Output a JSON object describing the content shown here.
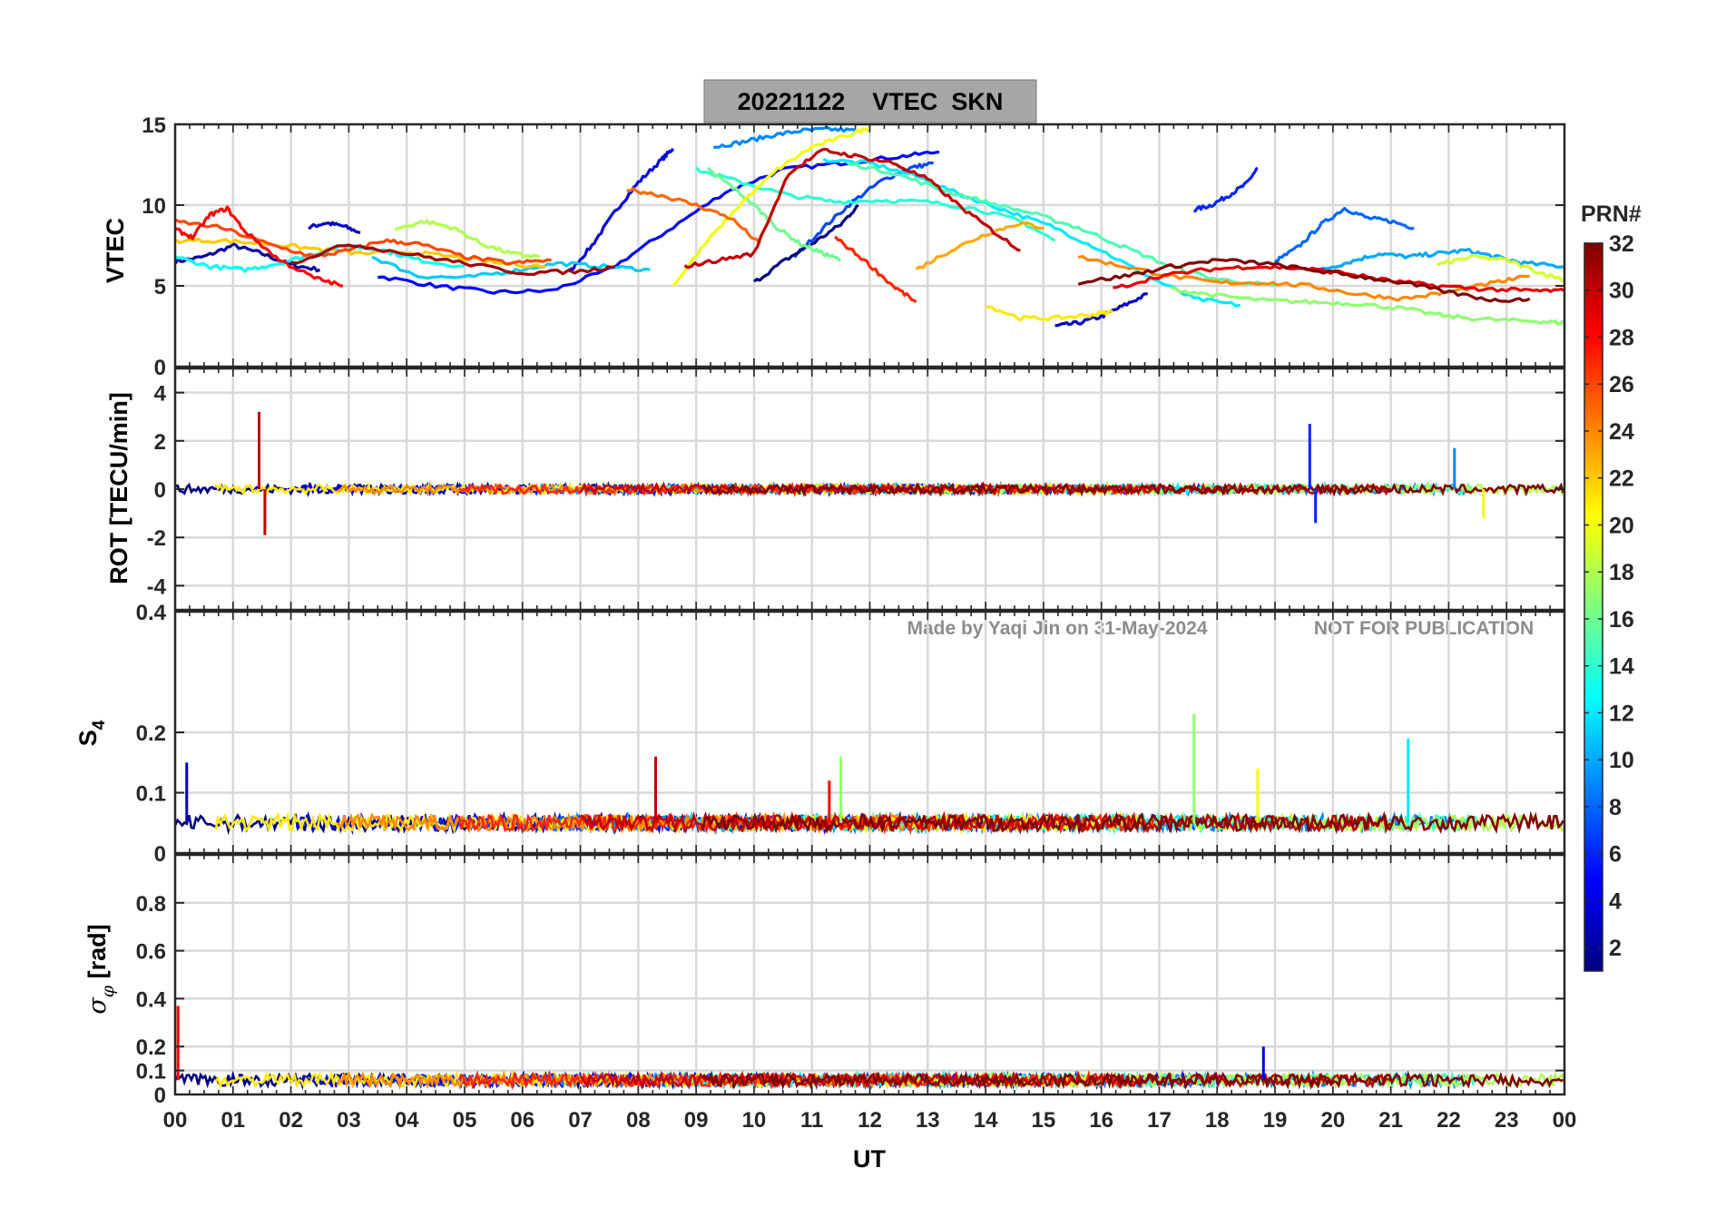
{
  "chart_data": {
    "type": "line",
    "title": "20221122    VTEC  SKN",
    "watermark": {
      "credit": "Made by Yaqi Jin on 31-May-2024",
      "notice": "NOT FOR PUBLICATION"
    },
    "xlabel": "UT",
    "xlim": [
      0,
      24
    ],
    "x_ticks": [
      0,
      1,
      2,
      3,
      4,
      5,
      6,
      7,
      8,
      9,
      10,
      11,
      12,
      13,
      14,
      15,
      16,
      17,
      18,
      19,
      20,
      21,
      22,
      23,
      24
    ],
    "x_tick_labels": [
      "00",
      "01",
      "02",
      "03",
      "04",
      "05",
      "06",
      "07",
      "08",
      "09",
      "10",
      "11",
      "12",
      "13",
      "14",
      "15",
      "16",
      "17",
      "18",
      "19",
      "20",
      "21",
      "22",
      "23",
      "00"
    ],
    "colorbar": {
      "label": "PRN#",
      "range": [
        1,
        32
      ],
      "ticks": [
        2,
        4,
        6,
        8,
        10,
        12,
        14,
        16,
        18,
        20,
        22,
        24,
        26,
        28,
        30,
        32
      ],
      "tick_labels": [
        "2",
        "4",
        "6",
        "8",
        "10",
        "12",
        "14",
        "16",
        "18",
        "20",
        "22",
        "24",
        "26",
        "28",
        "30",
        "32"
      ],
      "colormap": "jet"
    },
    "panels": [
      {
        "name": "vtec",
        "ylabel": "VTEC",
        "ylim": [
          0,
          15
        ],
        "y_ticks": [
          0,
          5,
          10,
          15
        ],
        "y_tick_labels": [
          "0",
          "5",
          "10",
          "15"
        ],
        "series": [
          {
            "prn": 2,
            "t": [
              0.0,
              0.5,
              1.0,
              1.5,
              2.0,
              2.5
            ],
            "v": [
              6.5,
              6.8,
              7.5,
              7.0,
              6.3,
              6.0
            ]
          },
          {
            "prn": 3,
            "t": [
              2.3,
              2.6,
              2.9,
              3.2
            ],
            "v": [
              8.6,
              8.9,
              8.7,
              8.3
            ]
          },
          {
            "prn": 4,
            "t": [
              6.8,
              7.2,
              7.6,
              8.0,
              8.4,
              8.6
            ],
            "v": [
              5.8,
              7.5,
              9.6,
              11.4,
              12.8,
              13.5
            ]
          },
          {
            "prn": 5,
            "t": [
              3.5,
              4.5,
              5.5,
              6.5,
              7.5,
              8.5,
              9.5,
              10.5,
              11.5,
              12.5,
              13.2
            ],
            "v": [
              5.6,
              5.0,
              4.6,
              4.7,
              6.0,
              8.4,
              10.8,
              12.2,
              12.6,
              13.0,
              13.3
            ]
          },
          {
            "prn": 6,
            "t": [
              17.6,
              17.9,
              18.2,
              18.5,
              18.7
            ],
            "v": [
              9.7,
              10.0,
              10.6,
              11.3,
              12.3
            ]
          },
          {
            "prn": 3,
            "t": [
              15.2,
              15.6,
              16.0,
              16.4,
              16.8
            ],
            "v": [
              2.5,
              2.7,
              3.1,
              3.8,
              4.5
            ]
          },
          {
            "prn": 7,
            "t": [
              10.7,
              11.2,
              11.7,
              12.2,
              12.7,
              13.1
            ],
            "v": [
              6.8,
              8.6,
              10.2,
              11.5,
              12.3,
              12.6
            ]
          },
          {
            "prn": 8,
            "t": [
              19.0,
              19.4,
              19.8,
              20.2,
              20.6,
              21.0,
              21.4
            ],
            "v": [
              6.5,
              7.4,
              8.8,
              9.8,
              9.2,
              9.0,
              8.6
            ]
          },
          {
            "prn": 9,
            "t": [
              9.3,
              9.8,
              10.3,
              10.8,
              11.3,
              11.8
            ],
            "v": [
              13.6,
              13.9,
              14.3,
              14.6,
              14.7,
              14.6
            ]
          },
          {
            "prn": 1,
            "t": [
              10.0,
              10.5,
              11.0,
              11.5,
              11.8
            ],
            "v": [
              5.2,
              6.5,
              7.6,
              8.8,
              10.0
            ]
          },
          {
            "prn": 10,
            "t": [
              19.8,
              20.3,
              20.8,
              21.3,
              21.8,
              22.3,
              22.8,
              23.3,
              24.0
            ],
            "v": [
              6.0,
              6.5,
              7.0,
              6.8,
              7.0,
              7.2,
              6.8,
              6.4,
              6.2
            ]
          },
          {
            "prn": 11,
            "t": [
              3.4,
              4.2,
              5.0,
              5.8,
              6.6,
              7.4,
              8.2
            ],
            "v": [
              6.8,
              5.6,
              5.5,
              5.9,
              6.4,
              6.2,
              6.0
            ]
          },
          {
            "prn": 12,
            "t": [
              11.2,
              12.0,
              12.8,
              13.6,
              14.4,
              15.2,
              16.0,
              16.8,
              17.6,
              18.4
            ],
            "v": [
              12.8,
              12.6,
              11.8,
              10.6,
              9.6,
              8.6,
              7.2,
              5.6,
              4.2,
              3.8
            ]
          },
          {
            "prn": 13,
            "t": [
              0.0,
              0.6,
              1.2,
              1.8,
              2.4,
              3.0,
              3.6,
              4.2,
              5.0
            ],
            "v": [
              6.8,
              6.2,
              6.0,
              6.4,
              7.0,
              7.5,
              7.2,
              6.6,
              6.2
            ]
          },
          {
            "prn": 14,
            "t": [
              9.0,
              9.8,
              10.6,
              11.4,
              12.2,
              13.0,
              13.8,
              14.6,
              15.2
            ],
            "v": [
              12.2,
              11.4,
              10.6,
              10.2,
              10.3,
              10.2,
              9.8,
              9.0,
              7.8
            ]
          },
          {
            "prn": 15,
            "t": [
              11.6,
              12.4,
              13.2,
              14.0,
              14.8,
              15.6,
              16.4,
              17.2,
              18.0,
              19.0
            ],
            "v": [
              12.6,
              12.0,
              11.0,
              10.2,
              9.5,
              8.6,
              7.4,
              6.2,
              5.4,
              5.0
            ]
          },
          {
            "prn": 16,
            "t": [
              9.2,
              9.6,
              10.0,
              10.4,
              10.8,
              11.2,
              11.5
            ],
            "v": [
              12.2,
              11.2,
              10.0,
              8.6,
              7.6,
              7.0,
              6.6
            ]
          },
          {
            "prn": 17,
            "t": [
              17.2,
              18.0,
              18.8,
              19.6,
              20.4,
              21.2,
              22.0,
              22.8,
              23.6,
              24.0
            ],
            "v": [
              4.8,
              4.4,
              4.1,
              4.0,
              3.9,
              3.6,
              3.1,
              2.9,
              2.8,
              2.7
            ]
          },
          {
            "prn": 18,
            "t": [
              3.8,
              4.3,
              4.8,
              5.3,
              5.8,
              6.3
            ],
            "v": [
              8.5,
              9.0,
              8.6,
              7.6,
              7.0,
              6.8
            ]
          },
          {
            "prn": 19,
            "t": [
              21.8,
              22.4,
              23.0,
              23.6,
              24.0
            ],
            "v": [
              6.3,
              6.8,
              6.6,
              5.8,
              5.4
            ]
          },
          {
            "prn": 20,
            "t": [
              8.6,
              9.2,
              9.8,
              10.4,
              11.0,
              11.6,
              12.0
            ],
            "v": [
              5.0,
              7.8,
              10.2,
              12.2,
              13.6,
              14.3,
              14.8
            ]
          },
          {
            "prn": 21,
            "t": [
              14.0,
              14.6,
              15.2,
              15.8,
              16.2
            ],
            "v": [
              3.8,
              3.0,
              3.0,
              3.2,
              3.4
            ]
          },
          {
            "prn": 22,
            "t": [
              0.0,
              0.8,
              1.6,
              2.4,
              3.2,
              4.0,
              4.8,
              5.6,
              6.4
            ],
            "v": [
              7.8,
              7.8,
              7.6,
              7.3,
              7.0,
              7.1,
              6.8,
              6.4,
              6.2
            ]
          },
          {
            "prn": 23,
            "t": [
              12.8,
              13.4,
              14.0,
              14.6,
              15.0
            ],
            "v": [
              6.0,
              7.2,
              8.2,
              8.9,
              8.6
            ]
          },
          {
            "prn": 24,
            "t": [
              15.6,
              16.4,
              17.2,
              18.0,
              18.8,
              19.6,
              20.4,
              21.2,
              22.0,
              22.8,
              23.4
            ],
            "v": [
              6.8,
              6.2,
              5.6,
              5.2,
              5.2,
              5.0,
              4.5,
              4.2,
              4.6,
              5.2,
              5.6
            ]
          },
          {
            "prn": 25,
            "t": [
              7.8,
              8.4,
              9.0,
              9.6,
              10.1
            ],
            "v": [
              11.0,
              10.6,
              10.0,
              9.2,
              7.6
            ]
          },
          {
            "prn": 26,
            "t": [
              0.0,
              0.8,
              1.6,
              2.4,
              3.0,
              3.6,
              4.2,
              5.0,
              5.8,
              6.5
            ],
            "v": [
              9.0,
              8.6,
              7.6,
              6.8,
              7.2,
              7.8,
              7.6,
              6.8,
              6.4,
              6.6
            ]
          },
          {
            "prn": 27,
            "t": [
              11.4,
              11.9,
              12.4,
              12.8
            ],
            "v": [
              8.0,
              6.6,
              5.0,
              4.0
            ]
          },
          {
            "prn": 28,
            "t": [
              0.0,
              0.3,
              0.6,
              0.9,
              1.2,
              1.8,
              2.4,
              2.9
            ],
            "v": [
              8.5,
              8.0,
              9.4,
              9.8,
              8.4,
              6.6,
              5.5,
              5.0
            ]
          },
          {
            "prn": 29,
            "t": [
              16.2,
              17.0,
              17.8,
              18.6,
              19.4,
              20.2,
              21.0,
              21.8,
              22.6,
              23.4,
              24.0
            ],
            "v": [
              4.8,
              5.6,
              6.0,
              6.2,
              6.1,
              5.8,
              5.3,
              5.0,
              4.8,
              4.7,
              4.7
            ]
          },
          {
            "prn": 30,
            "t": [
              8.8,
              9.4,
              10.0,
              10.6,
              11.2,
              11.8,
              12.4,
              13.0,
              13.6,
              14.2,
              14.6
            ],
            "v": [
              6.2,
              6.6,
              7.0,
              12.0,
              13.4,
              13.0,
              12.6,
              11.6,
              9.8,
              8.2,
              7.2
            ]
          },
          {
            "prn": 31,
            "t": [
              2.0,
              3.0,
              4.0,
              5.0,
              6.0,
              7.0,
              7.6
            ],
            "v": [
              6.4,
              7.6,
              7.0,
              6.4,
              5.8,
              5.9,
              6.2
            ]
          },
          {
            "prn": 32,
            "t": [
              15.6,
              16.4,
              17.2,
              18.0,
              18.8,
              19.6,
              20.4,
              21.2,
              22.0,
              22.8,
              23.4
            ],
            "v": [
              5.2,
              5.6,
              6.2,
              6.6,
              6.4,
              6.0,
              5.6,
              5.2,
              4.6,
              4.1,
              4.2
            ]
          }
        ]
      },
      {
        "name": "rot",
        "ylabel": "ROT [TECU/min]",
        "ylim": [
          -5,
          5
        ],
        "y_ticks": [
          -4,
          -2,
          0,
          2,
          4
        ],
        "y_tick_labels": [
          "-4",
          "-2",
          "0",
          "2",
          "4"
        ],
        "spikes": [
          {
            "prn": 30,
            "t": 1.45,
            "v": 3.2
          },
          {
            "prn": 30,
            "t": 1.55,
            "v": -1.9
          },
          {
            "prn": 6,
            "t": 19.6,
            "v": 2.7
          },
          {
            "prn": 6,
            "t": 19.7,
            "v": -1.4
          },
          {
            "prn": 9,
            "t": 22.1,
            "v": 1.7
          },
          {
            "prn": 20,
            "t": 22.6,
            "v": -1.2
          }
        ]
      },
      {
        "name": "s4",
        "ylabel": "S4",
        "ylim": [
          0,
          0.4
        ],
        "y_ticks": [
          0,
          0.1,
          0.2,
          0.4
        ],
        "y_tick_labels": [
          "0",
          "0.1",
          "0.2",
          "0.4"
        ],
        "spikes": [
          {
            "prn": 3,
            "t": 0.2,
            "v": 0.15
          },
          {
            "prn": 30,
            "t": 8.3,
            "v": 0.16
          },
          {
            "prn": 28,
            "t": 11.3,
            "v": 0.12
          },
          {
            "prn": 17,
            "t": 11.5,
            "v": 0.16
          },
          {
            "prn": 17,
            "t": 17.6,
            "v": 0.23
          },
          {
            "prn": 20,
            "t": 18.7,
            "v": 0.14
          },
          {
            "prn": 12,
            "t": 21.3,
            "v": 0.19
          }
        ]
      },
      {
        "name": "sigma_phi",
        "ylabel": "σφ [rad]",
        "ylim": [
          0,
          1
        ],
        "y_ticks": [
          0,
          0.1,
          0.2,
          0.4,
          0.6,
          0.8
        ],
        "y_tick_labels": [
          "0",
          "0.1",
          "0.2",
          "0.4",
          "0.6",
          "0.8"
        ],
        "spikes": [
          {
            "prn": 28,
            "t": 0.05,
            "v": 0.37
          },
          {
            "prn": 4,
            "t": 18.8,
            "v": 0.2
          }
        ]
      }
    ]
  }
}
